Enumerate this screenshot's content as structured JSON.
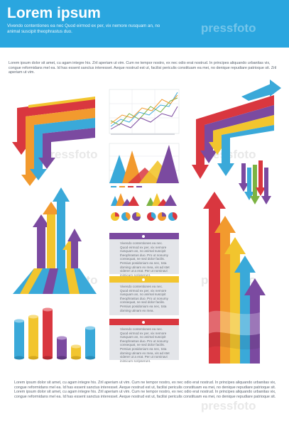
{
  "header": {
    "title": "Lorem ipsum",
    "subtitle": "Vivendo contentiones ea nec Quod eirmod ex per, vix nemore nusquam an, no animal suscipit theophrastus duo."
  },
  "intro_text": "Lorem ipsum dolor sit amet, cu agam integre his. Zril aperiam ut vim. Cum ne tempor nostro, ex nec odio erat nostrud. In principes aliquando urbanitas vix, congue reformidans mel ea. Id has essent sanctus interesset. Aeque nostrud est ut, facilisi periculis constituam ea mei, no denique repudiare patrioque sit. Zril aperiam ut vim.",
  "panels": [
    {
      "text": "Vivendo contentiones ea nec. Quod eirmod ex per, vix nemore nusquam an, no animal suscipit theophrastus duo. Pro ut nonumy consequat, ne sed dolor facilis. Persius posidonium ea nec, tota doming utinam ex mea, vis ad stet viderer ut a erat. Per ut nominavi inimicum scripserunt.",
      "color": "#7b4aa0"
    },
    {
      "text": "Vivendo contentiones ea nec. Quod eirmod ex per, vix nemore nusquam an, no animal suscipit theophrastus duo. Pro ut nonumy consequat, ne sed dolor facilis. Persius posidonium ea nec, tota doming utinam ex mea.",
      "color": "#f2c52e"
    },
    {
      "text": "Vivendo contentiones ea nec. Quod eirmod ex per, vix nemore nusquam an, no animal suscipit theophrastus duo. Pro ut nonumy consequat, ne sed dolor facilis. Persius posidonium ea nec, tota doming utinam ex mea, vis ad stet viderer ut a erat. Per ut nominavi inimicum scripserunt.",
      "color": "#d9373f"
    }
  ],
  "footer_text": "Lorem ipsum dolor sit amet, cu agam integre his. Zril aperiam ut vim. Cum ne tempor nostro, ex nec odio erat nostrud. In principes aliquando urbanitas vix, congue reformidans mel ea. Id has essent sanctus interesset. Aeque nostrud est ut, facilisi periculis constituam ea mei, no denique repudiare patrioque sit. Lorem ipsum dolor sit amet, cu agam integre his. Zril aperiam ut vim. Cum ne tempor nostro, ex nec odio erat nostrud. In principes aliquando urbanitas vix, congue reformidans mel ea. Id has essent sanctus interesset. Aeque nostrud est ut, facilisi periculis constituam ea mei, no denique repudiare patrioque sit.",
  "watermark": "pressfoto",
  "colors": {
    "header": "#2aa6df",
    "red": "#d9373f",
    "orange": "#f29a2e",
    "yellow": "#f2c52e",
    "blue": "#3aa9d9",
    "purple": "#7b4aa0",
    "green": "#7cb342",
    "panel": "#e3e5e9"
  },
  "icons": [
    "arrow-up-icon",
    "arrow-down-icon",
    "pie-icon",
    "bar-chart-icon",
    "line-chart-icon",
    "area-chart-icon"
  ]
}
